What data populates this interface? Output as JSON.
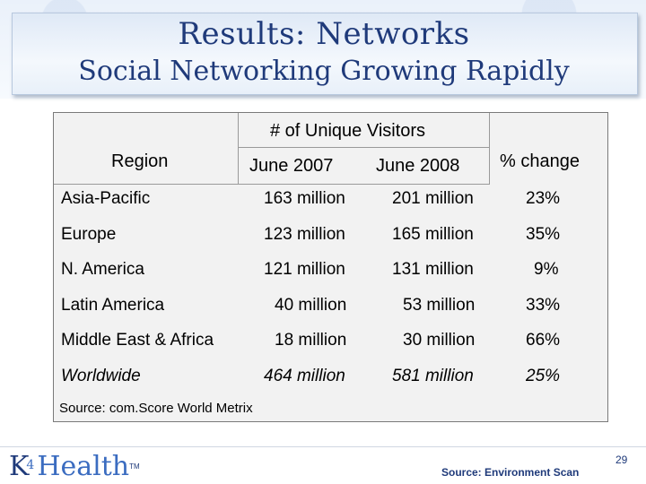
{
  "slide": {
    "title": "Results: Networks",
    "subtitle": "Social Networking Growing Rapidly",
    "page_number": "29",
    "footer_source": "Source: Environment Scan",
    "logo": {
      "k": "K",
      "four": "4",
      "rest": "Health",
      "tm": "TM"
    }
  },
  "table": {
    "group_header": "# of Unique Visitors",
    "col_region": "Region",
    "col_june2007": "June 2007",
    "col_june2008": "June 2008",
    "col_change": "% change",
    "rows": [
      {
        "region": "Asia-Pacific",
        "june2007": "163 million",
        "june2008": "201 million",
        "change": "23%"
      },
      {
        "region": "Europe",
        "june2007": "123 million",
        "june2008": "165 million",
        "change": "35%"
      },
      {
        "region": "N. America",
        "june2007": "121 million",
        "june2008": "131 million",
        "change": "9%"
      },
      {
        "region": "Latin America",
        "june2007": "40 million",
        "june2008": "53 million",
        "change": "33%"
      },
      {
        "region": "Middle East & Africa",
        "june2007": "18 million",
        "june2008": "30 million",
        "change": "66%"
      },
      {
        "region": "Worldwide",
        "june2007": "464 million",
        "june2008": "581 million",
        "change": "25%"
      }
    ],
    "source": "Source: com.Score World Metrix"
  }
}
